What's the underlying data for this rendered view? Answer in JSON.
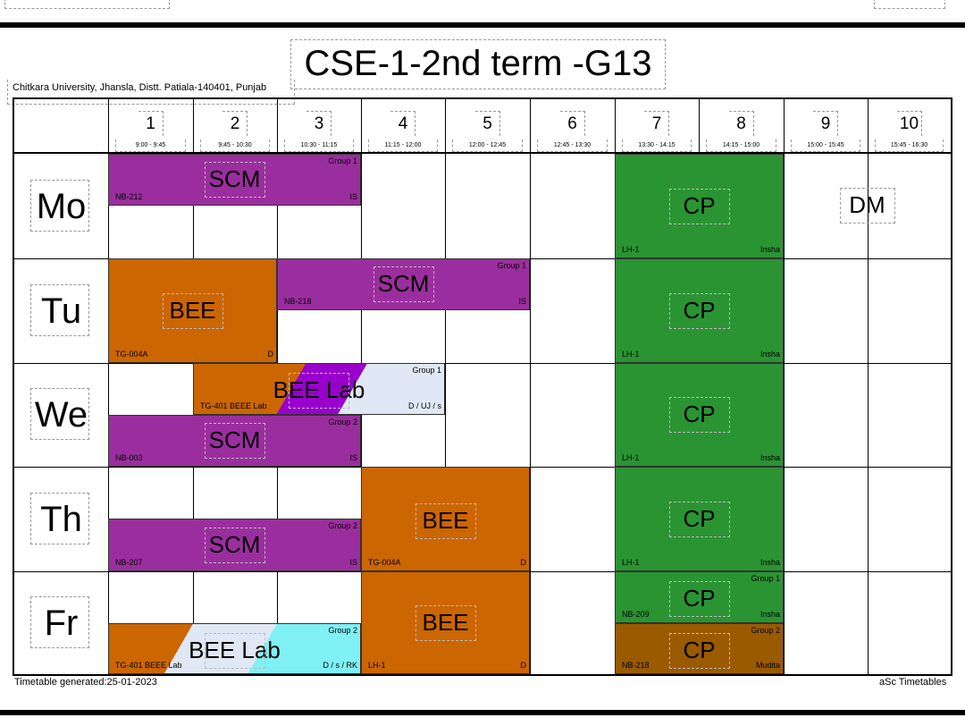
{
  "header": {
    "title": "CSE-1-2nd term -G13",
    "institution": "Chitkara University, Jhansla, Distt. Patiala-140401, Punjab"
  },
  "periods": [
    {
      "num": "1",
      "time": "9:00 - 9:45"
    },
    {
      "num": "2",
      "time": "9:45 - 10:30"
    },
    {
      "num": "3",
      "time": "10:30 - 11:15"
    },
    {
      "num": "4",
      "time": "11:15 - 12:00"
    },
    {
      "num": "5",
      "time": "12:00 - 12:45"
    },
    {
      "num": "6",
      "time": "12:45 - 13:30"
    },
    {
      "num": "7",
      "time": "13:30 - 14:15"
    },
    {
      "num": "8",
      "time": "14:15 - 15:00"
    },
    {
      "num": "9",
      "time": "15:00 - 15:45"
    },
    {
      "num": "10",
      "time": "15:45 - 16:30"
    }
  ],
  "days": [
    "Mo",
    "Tu",
    "We",
    "Th",
    "Fr"
  ],
  "lessons": {
    "mo_scm": {
      "subject": "SCM",
      "group": "Group 1",
      "room": "NB-212",
      "teacher": "IS"
    },
    "mo_cp": {
      "subject": "CP",
      "room": "LH-1",
      "teacher": "Insha"
    },
    "mo_dm": {
      "subject": "DM"
    },
    "tu_bee": {
      "subject": "BEE",
      "room": "TG-004A",
      "teacher": "D"
    },
    "tu_scm": {
      "subject": "SCM",
      "group": "Group 1",
      "room": "NB-218",
      "teacher": "IS"
    },
    "tu_cp": {
      "subject": "CP",
      "room": "LH-1",
      "teacher": "Insha"
    },
    "we_beelab": {
      "subject": "BEE Lab",
      "group": "Group 1",
      "room": "TG-401 BEEE Lab",
      "teacher": "D / UJ / s"
    },
    "we_scm": {
      "subject": "SCM",
      "group": "Group 2",
      "room": "NB-003",
      "teacher": "IS"
    },
    "we_cp": {
      "subject": "CP",
      "room": "LH-1",
      "teacher": "Insha"
    },
    "th_scm": {
      "subject": "SCM",
      "group": "Group 2",
      "room": "NB-207",
      "teacher": "IS"
    },
    "th_bee": {
      "subject": "BEE",
      "room": "TG-004A",
      "teacher": "D"
    },
    "th_cp": {
      "subject": "CP",
      "room": "LH-1",
      "teacher": "Insha"
    },
    "fr_beelab": {
      "subject": "BEE Lab",
      "group": "Group 2",
      "room": "TG-401 BEEE Lab",
      "teacher": "D / s / RK"
    },
    "fr_bee": {
      "subject": "BEE",
      "room": "LH-1",
      "teacher": "D"
    },
    "fr_cp1": {
      "subject": "CP",
      "group": "Group 1",
      "room": "NB-209",
      "teacher": "Insha"
    },
    "fr_cp2": {
      "subject": "CP",
      "group": "Group 2",
      "room": "NB-218",
      "teacher": "Mudita"
    }
  },
  "footer": {
    "generated": "Timetable generated:25-01-2023",
    "brand": "aSc Timetables"
  },
  "colors": {
    "scm": "#9b2e9e",
    "bee": "#cc6600",
    "cp": "#2a9433",
    "cp_group2": "#9a5a00",
    "lab_purple": "#9900cc",
    "lab_light": "#dfe8f4",
    "lab_cyan": "#7ff0f4"
  }
}
